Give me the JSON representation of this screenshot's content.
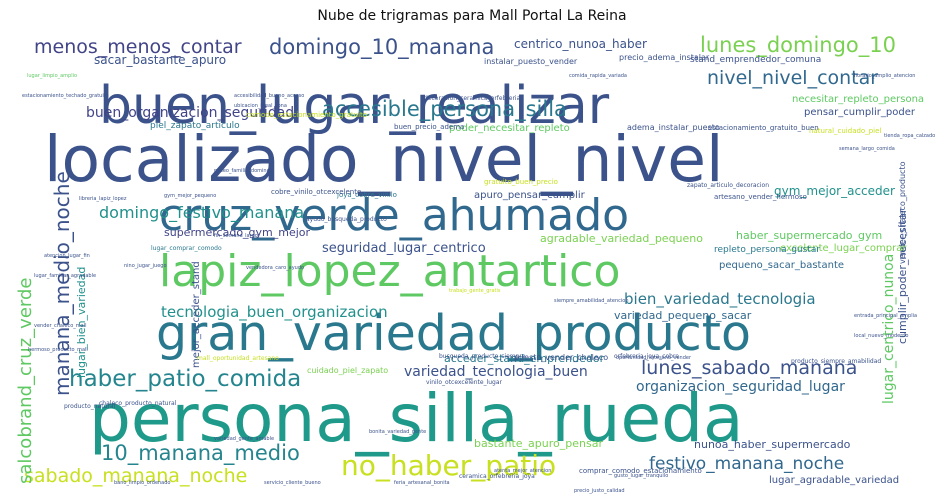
{
  "title": "Nube de trigramas para Mall Portal La Reina",
  "words": [
    {
      "text": "persona_silla_rueda",
      "color": "#1f9a8a"
    },
    {
      "text": "localizado_nivel_nivel",
      "color": "#3b528b"
    },
    {
      "text": "buen_lugar_realizar",
      "color": "#3b528b"
    },
    {
      "text": "gran_variedad_producto",
      "color": "#2a788e"
    },
    {
      "text": "lapiz_lopez_antartico",
      "color": "#5ec962"
    },
    {
      "text": "cruz_verde_ahumado",
      "color": "#31688e"
    },
    {
      "text": "no_haber_patio",
      "color": "#c8e020"
    },
    {
      "text": "haber_patio_comida",
      "color": "#25858e"
    },
    {
      "text": "domingo_10_manana",
      "color": "#3b528b"
    },
    {
      "text": "accesible_persona_silla",
      "color": "#2a788e"
    },
    {
      "text": "lunes_domingo_10",
      "color": "#7ad151"
    },
    {
      "text": "nivel_nivel_contar",
      "color": "#31688e"
    },
    {
      "text": "menos_menos_contar",
      "color": "#414487"
    },
    {
      "text": "10_manana_medio",
      "color": "#25858e"
    },
    {
      "text": "sabado_manana_noche",
      "color": "#c8e020"
    },
    {
      "text": "lunes_sabado_manana",
      "color": "#3b528b"
    },
    {
      "text": "festivo_manana_noche",
      "color": "#31688e"
    },
    {
      "text": "domingo_festivo_manana",
      "color": "#21918c"
    },
    {
      "text": "tecnologia_buen_organizacion",
      "color": "#21918c"
    },
    {
      "text": "bien_variedad_tecnologia",
      "color": "#2a788e"
    },
    {
      "text": "variedad_tecnologia_buen",
      "color": "#3b528b"
    },
    {
      "text": "organizacion_seguridad_lugar",
      "color": "#31688e"
    },
    {
      "text": "buen_organizacion_seguridad",
      "color": "#414487"
    },
    {
      "text": "seguridad_lugar_centrico",
      "color": "#3b528b"
    },
    {
      "text": "manana_medio_noche",
      "color": "#3b528b"
    },
    {
      "text": "salcobrand_cruz_verde",
      "color": "#5ec962"
    },
    {
      "text": "lugar_centrico_nunoa",
      "color": "#5ec962"
    },
    {
      "text": "centrico_nunoa_haber",
      "color": "#3b528b"
    },
    {
      "text": "sacar_bastante_apuro",
      "color": "#3b528b"
    },
    {
      "text": "gym_mejor_acceder",
      "color": "#21918c"
    },
    {
      "text": "supermercado_gym_mejor",
      "color": "#414487"
    },
    {
      "text": "haber_supermercado_gym",
      "color": "#5ec962"
    },
    {
      "text": "agradable_variedad_pequeno",
      "color": "#7ad151"
    },
    {
      "text": "excelente_lugar_comprar",
      "color": "#7ad151"
    },
    {
      "text": "repleto_persona_gustar",
      "color": "#2a788e"
    },
    {
      "text": "pequeno_sacar_bastante",
      "color": "#31688e"
    },
    {
      "text": "acceder_stand_emprendedor",
      "color": "#2a788e"
    },
    {
      "text": "variedad_pequeno_sacar",
      "color": "#31688e"
    },
    {
      "text": "nunoa_haber_supermercado",
      "color": "#3b528b"
    },
    {
      "text": "bastante_apuro_pensar",
      "color": "#7ad151"
    },
    {
      "text": "lugar_agradable_variedad",
      "color": "#3b528b"
    },
    {
      "text": "stand_emprendedor_comuna",
      "color": "#3b528b"
    },
    {
      "text": "necesitar_repleto_persona",
      "color": "#5ec962"
    },
    {
      "text": "pensar_cumplir_poder",
      "color": "#3b528b"
    },
    {
      "text": "apuro_pensar_cumplir",
      "color": "#3b528b"
    },
    {
      "text": "cumplir_poder_necesitar",
      "color": "#3b528b"
    },
    {
      "text": "mejor_acceder_stand",
      "color": "#3b528b"
    },
    {
      "text": "poder_necesitar_repleto",
      "color": "#5ec962"
    },
    {
      "text": "piel_zapato_articulo",
      "color": "#2a788e"
    },
    {
      "text": "cuidado_piel_zapato",
      "color": "#7ad151"
    },
    {
      "text": "lugar_bien_variedad",
      "color": "#21918c"
    },
    {
      "text": "puesto_vender_chaleco",
      "color": "#3b528b"
    },
    {
      "text": "precio_adema_instalar",
      "color": "#3b528b"
    },
    {
      "text": "instalar_puesto_vender",
      "color": "#3b528b"
    },
    {
      "text": "adema_instalar_puesto",
      "color": "#3b528b"
    },
    {
      "text": "buen_precio_adema",
      "color": "#3b528b"
    },
    {
      "text": "natural_cuidado_piel",
      "color": "#c8e020"
    },
    {
      "text": "estacionamiento_gratuito_buen",
      "color": "#3b528b"
    },
    {
      "text": "comodo_estacionamiento_gratuito",
      "color": "#c8e020"
    },
    {
      "text": "gratuito_buen_precio",
      "color": "#c8e020"
    },
    {
      "text": "joya_cobre_vinilo",
      "color": "#2a788e"
    },
    {
      "text": "cobre_vinilo_otcexcelente",
      "color": "#3b528b"
    },
    {
      "text": "artesano_vender_hermoso",
      "color": "#3b528b"
    },
    {
      "text": "zapato_articulo_decoracion",
      "color": "#3b528b"
    },
    {
      "text": "ayudo_busqueda_producto",
      "color": "#3b528b"
    },
    {
      "text": "vender_chaleco_producto",
      "color": "#3b528b"
    },
    {
      "text": "lugar_comprar_comodo",
      "color": "#2a788e"
    },
    {
      "text": "chaleco_producto_natural",
      "color": "#3b528b"
    },
    {
      "text": "producto_natural",
      "color": "#3b528b"
    },
    {
      "text": "decoracion_ceramica_orfebreria",
      "color": "#3b528b"
    },
    {
      "text": "ceramica_orfebreria_joya",
      "color": "#3b528b"
    },
    {
      "text": "comprar_comodo_estacionamiento",
      "color": "#3b528b"
    },
    {
      "text": "orfebreria_joya_cobre",
      "color": "#3b528b"
    },
    {
      "text": "producto_siempre_amabilidad",
      "color": "#3b528b"
    },
    {
      "text": "vinilo_otcexcelente_lugar",
      "color": "#3b528b"
    },
    {
      "text": "mall_oportunidad_artesano",
      "color": "#c8e020"
    },
    {
      "text": "busqueda_producto_siempre",
      "color": "#3b528b"
    },
    {
      "text": "oportunidad_artesano_vender",
      "color": "#3b528b"
    },
    {
      "text": "libreria_lapiz_lopez",
      "color": "#3b528b"
    },
    {
      "text": "fin_semana_largo",
      "color": "#3b528b"
    },
    {
      "text": "semana_largo_comida",
      "color": "#3b528b"
    },
    {
      "text": "atencion_lugar_fin",
      "color": "#3b528b"
    },
    {
      "text": "vendedora_caro_ayudo",
      "color": "#3b528b"
    },
    {
      "text": "siempre_amabilidad_atencion",
      "color": "#3b528b"
    },
    {
      "text": "hermoso_producto_mall",
      "color": "#3b528b"
    },
    {
      "text": "gym_mejor_pequeno",
      "color": "#3b528b"
    },
    {
      "text": "trabajo_gente_gratis",
      "color": "#c8e020"
    },
    {
      "text": "bonita_variedad_gente",
      "color": "#3b528b"
    },
    {
      "text": "atenta_mejor_atencion",
      "color": "#3b528b"
    },
    {
      "text": "variedad_gente_amable",
      "color": "#3b528b"
    },
    {
      "text": "gusto_lugar_tranquilo",
      "color": "#3b528b"
    },
    {
      "text": "lugar_limpio_amplio",
      "color": "#5ec962"
    },
    {
      "text": "estacionamiento_techado_gratuito",
      "color": "#3b528b"
    },
    {
      "text": "ubicacion_ideal_zona",
      "color": "#3b528b"
    },
    {
      "text": "accesibilidad_bueno_acceso",
      "color": "#3b528b"
    },
    {
      "text": "comida_rapida_variada",
      "color": "#3b528b"
    },
    {
      "text": "horario_amplio_atencion",
      "color": "#3b528b"
    },
    {
      "text": "tienda_ropa_calzado",
      "color": "#3b528b"
    },
    {
      "text": "precio_justo_calidad",
      "color": "#3b528b"
    },
    {
      "text": "feria_artesanal_bonita",
      "color": "#3b528b"
    },
    {
      "text": "servicio_cliente_bueno",
      "color": "#3b528b"
    },
    {
      "text": "bano_limpio_ordenado",
      "color": "#3b528b"
    },
    {
      "text": "entrada_principal_amplia",
      "color": "#3b528b"
    },
    {
      "text": "local_nuevo_moderno",
      "color": "#3b528b"
    },
    {
      "text": "lugar_familiar_agradable",
      "color": "#3b528b"
    },
    {
      "text": "vender_chaleco_mall",
      "color": "#3b528b"
    },
    {
      "text": "nino_jugar_juego",
      "color": "#3b528b"
    },
    {
      "text": "paseo_familia_domingo",
      "color": "#3b528b"
    },
    {
      "text": "solo_ir_comprar",
      "color": "#3b528b"
    }
  ]
}
